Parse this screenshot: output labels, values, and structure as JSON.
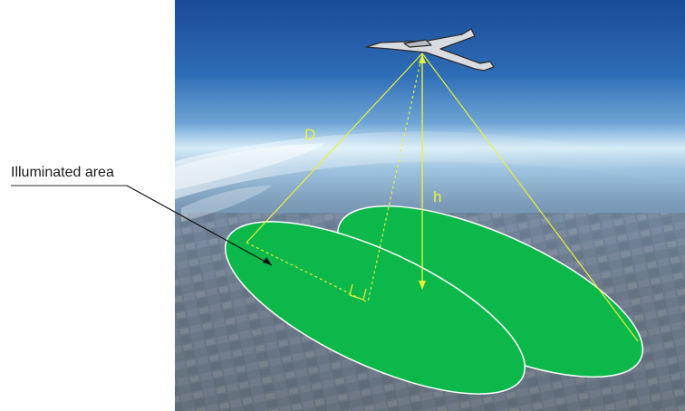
{
  "callout": {
    "text": "Illuminated area"
  },
  "labels": {
    "slant_range": "D",
    "altitude": "h"
  },
  "colors": {
    "footprint_fill": "#0cb84a",
    "footprint_outline": "#ffffff",
    "geometry_lines": "#e6f23a",
    "sky_top": "#1f4f9e",
    "sky_horizon": "#dbeef8",
    "ground": "#6e7a8c"
  },
  "icons": {
    "aircraft": "glider-uav-icon"
  }
}
